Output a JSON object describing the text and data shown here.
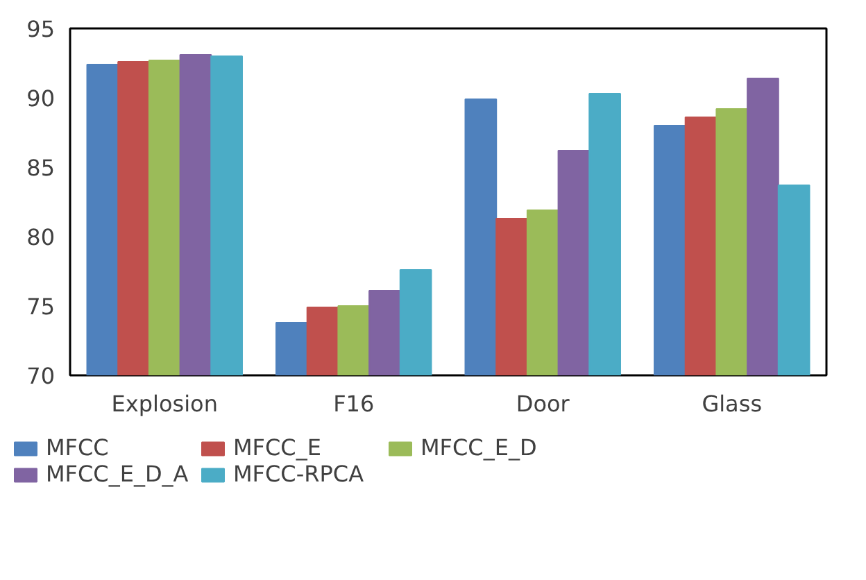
{
  "chart_data": {
    "type": "bar",
    "categories": [
      "Explosion",
      "F16",
      "Door",
      "Glass"
    ],
    "series": [
      {
        "name": "MFCC",
        "color": "#4f81bd",
        "values": [
          92.4,
          73.8,
          89.9,
          88.0
        ]
      },
      {
        "name": "MFCC_E",
        "color": "#c0504d",
        "values": [
          92.6,
          74.9,
          81.3,
          88.6
        ]
      },
      {
        "name": "MFCC_E_D",
        "color": "#9bbb59",
        "values": [
          92.7,
          75.0,
          81.9,
          89.2
        ]
      },
      {
        "name": "MFCC_E_D_A",
        "color": "#8064a2",
        "values": [
          93.1,
          76.1,
          86.2,
          91.4
        ]
      },
      {
        "name": "MFCC-RPCA",
        "color": "#4bacc6",
        "values": [
          93.0,
          77.6,
          90.3,
          83.7
        ]
      }
    ],
    "ylim": [
      70,
      95
    ],
    "yticks": [
      70,
      75,
      80,
      85,
      90,
      95
    ],
    "grid": false,
    "legend": "bottom"
  }
}
